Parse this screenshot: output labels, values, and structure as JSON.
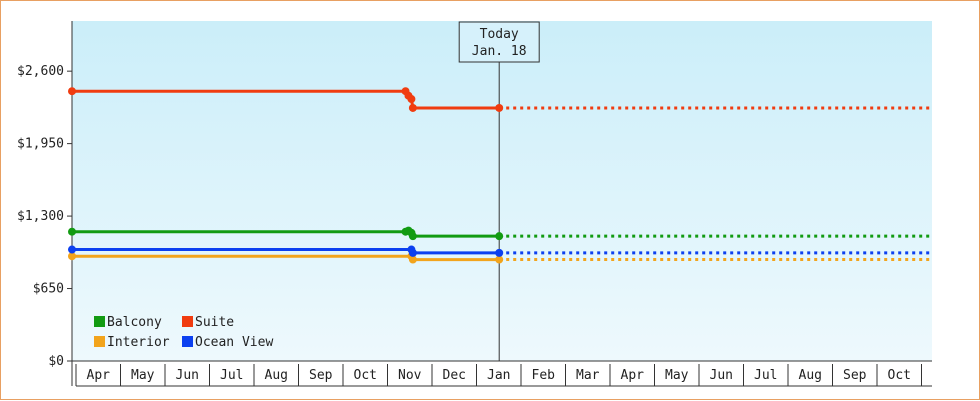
{
  "chart_data": {
    "type": "line",
    "y_ticks": [
      "$0",
      "$650",
      "$1,300",
      "$1,950",
      "$2,600"
    ],
    "y_tick_values": [
      0,
      650,
      1300,
      1950,
      2600
    ],
    "ylim": [
      0,
      3050
    ],
    "x_months": [
      "Apr",
      "May",
      "Jun",
      "Jul",
      "Aug",
      "Sep",
      "Oct",
      "Nov",
      "Dec",
      "Jan",
      "Feb",
      "Mar",
      "Apr",
      "May",
      "Jun",
      "Jul",
      "Aug",
      "Sep",
      "Oct"
    ],
    "today": {
      "line1": "Today",
      "line2": "Jan. 18"
    },
    "grid": false,
    "legend_position": "bottom-left",
    "series": [
      {
        "name": "Balcony",
        "color": "#129b12",
        "points": [
          [
            "2022-04-01",
            1160
          ],
          [
            "2022-11-15",
            1160
          ],
          [
            "2022-11-17",
            1170
          ],
          [
            "2022-11-19",
            1150
          ],
          [
            "2022-11-20",
            1120
          ],
          [
            "2023-01-18",
            1120
          ]
        ],
        "forecast": 1120
      },
      {
        "name": "Suite",
        "color": "#f03c10",
        "points": [
          [
            "2022-04-01",
            2420
          ],
          [
            "2022-11-15",
            2420
          ],
          [
            "2022-11-17",
            2380
          ],
          [
            "2022-11-19",
            2350
          ],
          [
            "2022-11-20",
            2270
          ],
          [
            "2023-01-18",
            2270
          ]
        ],
        "forecast": 2270
      },
      {
        "name": "Interior",
        "color": "#f2a41c",
        "points": [
          [
            "2022-04-01",
            940
          ],
          [
            "2022-11-15",
            940
          ],
          [
            "2022-11-19",
            940
          ],
          [
            "2022-11-20",
            910
          ],
          [
            "2023-01-18",
            910
          ]
        ],
        "forecast": 910
      },
      {
        "name": "Ocean View",
        "color": "#0c40f0",
        "points": [
          [
            "2022-04-01",
            1000
          ],
          [
            "2022-11-15",
            1000
          ],
          [
            "2022-11-19",
            1000
          ],
          [
            "2022-11-20",
            970
          ],
          [
            "2023-01-18",
            970
          ]
        ],
        "forecast": 970
      }
    ]
  }
}
